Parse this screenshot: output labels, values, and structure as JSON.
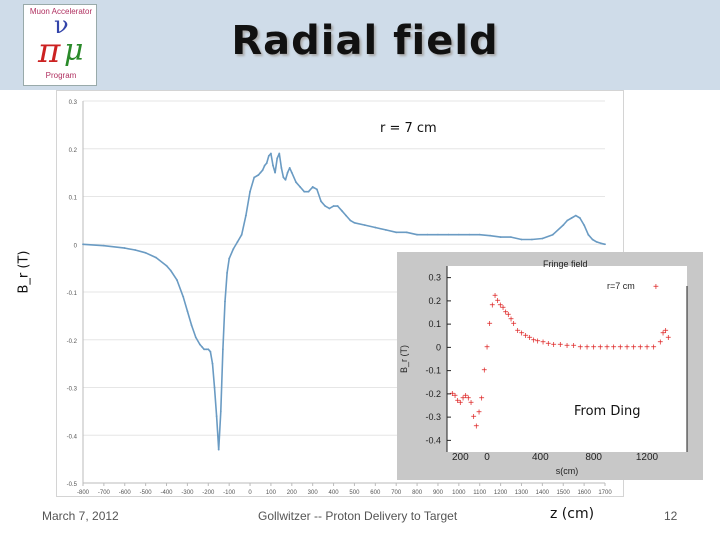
{
  "header": {
    "title": "Radial field",
    "logo": {
      "top_text": "Muon Accelerator",
      "bottom_text": "Program",
      "glyphs": [
        "π",
        "μ",
        "ν"
      ],
      "colors": {
        "pi": "#cc2222",
        "mu": "#2a8a2a",
        "nu": "#3344aa"
      }
    },
    "banner_color": "#cfdce9"
  },
  "footer": {
    "date": "March 7, 2012",
    "center": "Gollwitzer -- Proton Delivery to Target",
    "page": "12"
  },
  "labels": {
    "y_axis": "B_r (T)",
    "x_axis": "z (cm)",
    "radius": "r = 7 cm",
    "inset_credit": "From Ding"
  },
  "chart_data": [
    {
      "type": "scatter",
      "title": "",
      "xlabel": "z (cm)",
      "ylabel": "B_r (T)",
      "annotation": "r = 7 cm",
      "xlim": [
        -800,
        1700
      ],
      "ylim": [
        -0.5,
        0.3
      ],
      "xticks": [
        "-800",
        "-700",
        "-600",
        "-500",
        "-400",
        "-300",
        "-200",
        "-100",
        "0",
        "100",
        "200",
        "300",
        "400",
        "500",
        "600",
        "700",
        "800",
        "900",
        "1000",
        "1100",
        "1200",
        "1300",
        "1400",
        "1500",
        "1600",
        "1700"
      ],
      "yticks": [
        "-0.5",
        "-0.4",
        "-0.3",
        "-0.2",
        "-0.1",
        "0",
        "0.1",
        "0.2",
        "0.3"
      ],
      "color": "#6a9bc3",
      "grid": "horizontal",
      "series": [
        {
          "x": [
            -800,
            -700,
            -600,
            -550,
            -500,
            -450,
            -400,
            -380,
            -350,
            -320,
            -300,
            -280,
            -260,
            -240,
            -230,
            -220,
            -210,
            -200,
            -190,
            -180,
            -170,
            -160,
            -150,
            -140,
            -130,
            -120,
            -110,
            -100,
            -80,
            -60,
            -40,
            -20,
            0,
            20,
            40,
            50,
            60,
            70,
            80,
            90,
            100,
            110,
            120,
            130,
            140,
            150,
            160,
            170,
            180,
            190,
            200,
            220,
            240,
            260,
            280,
            300,
            320,
            340,
            360,
            380,
            400,
            420,
            440,
            460,
            480,
            500,
            550,
            600,
            650,
            700,
            750,
            800,
            850,
            900,
            950,
            1000,
            1050,
            1100,
            1150,
            1200,
            1250,
            1300,
            1350,
            1400,
            1450,
            1500,
            1520,
            1540,
            1560,
            1580,
            1600,
            1620,
            1640,
            1660,
            1680,
            1700
          ],
          "y": [
            0.0,
            -0.003,
            -0.008,
            -0.012,
            -0.018,
            -0.028,
            -0.045,
            -0.055,
            -0.075,
            -0.11,
            -0.14,
            -0.17,
            -0.195,
            -0.21,
            -0.215,
            -0.22,
            -0.22,
            -0.22,
            -0.225,
            -0.25,
            -0.3,
            -0.36,
            -0.43,
            -0.35,
            -0.22,
            -0.12,
            -0.06,
            -0.03,
            -0.01,
            0.005,
            0.02,
            0.06,
            0.11,
            0.14,
            0.145,
            0.15,
            0.155,
            0.165,
            0.17,
            0.185,
            0.19,
            0.165,
            0.15,
            0.18,
            0.19,
            0.16,
            0.14,
            0.135,
            0.15,
            0.16,
            0.15,
            0.13,
            0.12,
            0.11,
            0.11,
            0.12,
            0.115,
            0.09,
            0.08,
            0.075,
            0.08,
            0.08,
            0.07,
            0.06,
            0.05,
            0.045,
            0.04,
            0.035,
            0.03,
            0.025,
            0.025,
            0.02,
            0.02,
            0.02,
            0.02,
            0.02,
            0.02,
            0.02,
            0.018,
            0.015,
            0.015,
            0.01,
            0.01,
            0.012,
            0.02,
            0.04,
            0.05,
            0.055,
            0.06,
            0.055,
            0.04,
            0.02,
            0.01,
            0.005,
            0.002,
            0.0
          ]
        }
      ]
    },
    {
      "type": "scatter",
      "title": "Fringe field",
      "annotation": "r=7 cm",
      "xlabel": "s(cm)",
      "ylabel": "B_r (T)",
      "xlim": [
        -300,
        1500
      ],
      "ylim": [
        -0.45,
        0.35
      ],
      "xticks": [
        "200",
        "0",
        "400",
        "800",
        "1200"
      ],
      "yticks": [
        "-0.4",
        "-0.3",
        "-0.2",
        "-0.1",
        "0",
        "0.1",
        "0.2",
        "0.3"
      ],
      "color": "#dd2222",
      "marker": "+",
      "series": [
        {
          "x": [
            -260,
            -240,
            -220,
            -200,
            -180,
            -160,
            -140,
            -120,
            -100,
            -80,
            -60,
            -40,
            -20,
            0,
            20,
            40,
            60,
            80,
            100,
            120,
            140,
            160,
            180,
            200,
            230,
            260,
            290,
            320,
            350,
            380,
            420,
            460,
            500,
            550,
            600,
            650,
            700,
            750,
            800,
            850,
            900,
            950,
            1000,
            1050,
            1100,
            1150,
            1200,
            1250,
            1300,
            1320,
            1340,
            1360
          ],
          "y": [
            -0.2,
            -0.21,
            -0.23,
            -0.24,
            -0.22,
            -0.21,
            -0.22,
            -0.24,
            -0.3,
            -0.34,
            -0.28,
            -0.22,
            -0.1,
            0.0,
            0.1,
            0.18,
            0.22,
            0.2,
            0.18,
            0.17,
            0.15,
            0.14,
            0.12,
            0.1,
            0.07,
            0.06,
            0.05,
            0.04,
            0.03,
            0.025,
            0.02,
            0.015,
            0.01,
            0.01,
            0.005,
            0.005,
            0.0,
            0.0,
            0.0,
            0.0,
            0.0,
            0.0,
            0.0,
            0.0,
            0.0,
            0.0,
            0.0,
            0.0,
            0.02,
            0.06,
            0.07,
            0.04
          ]
        }
      ]
    }
  ]
}
